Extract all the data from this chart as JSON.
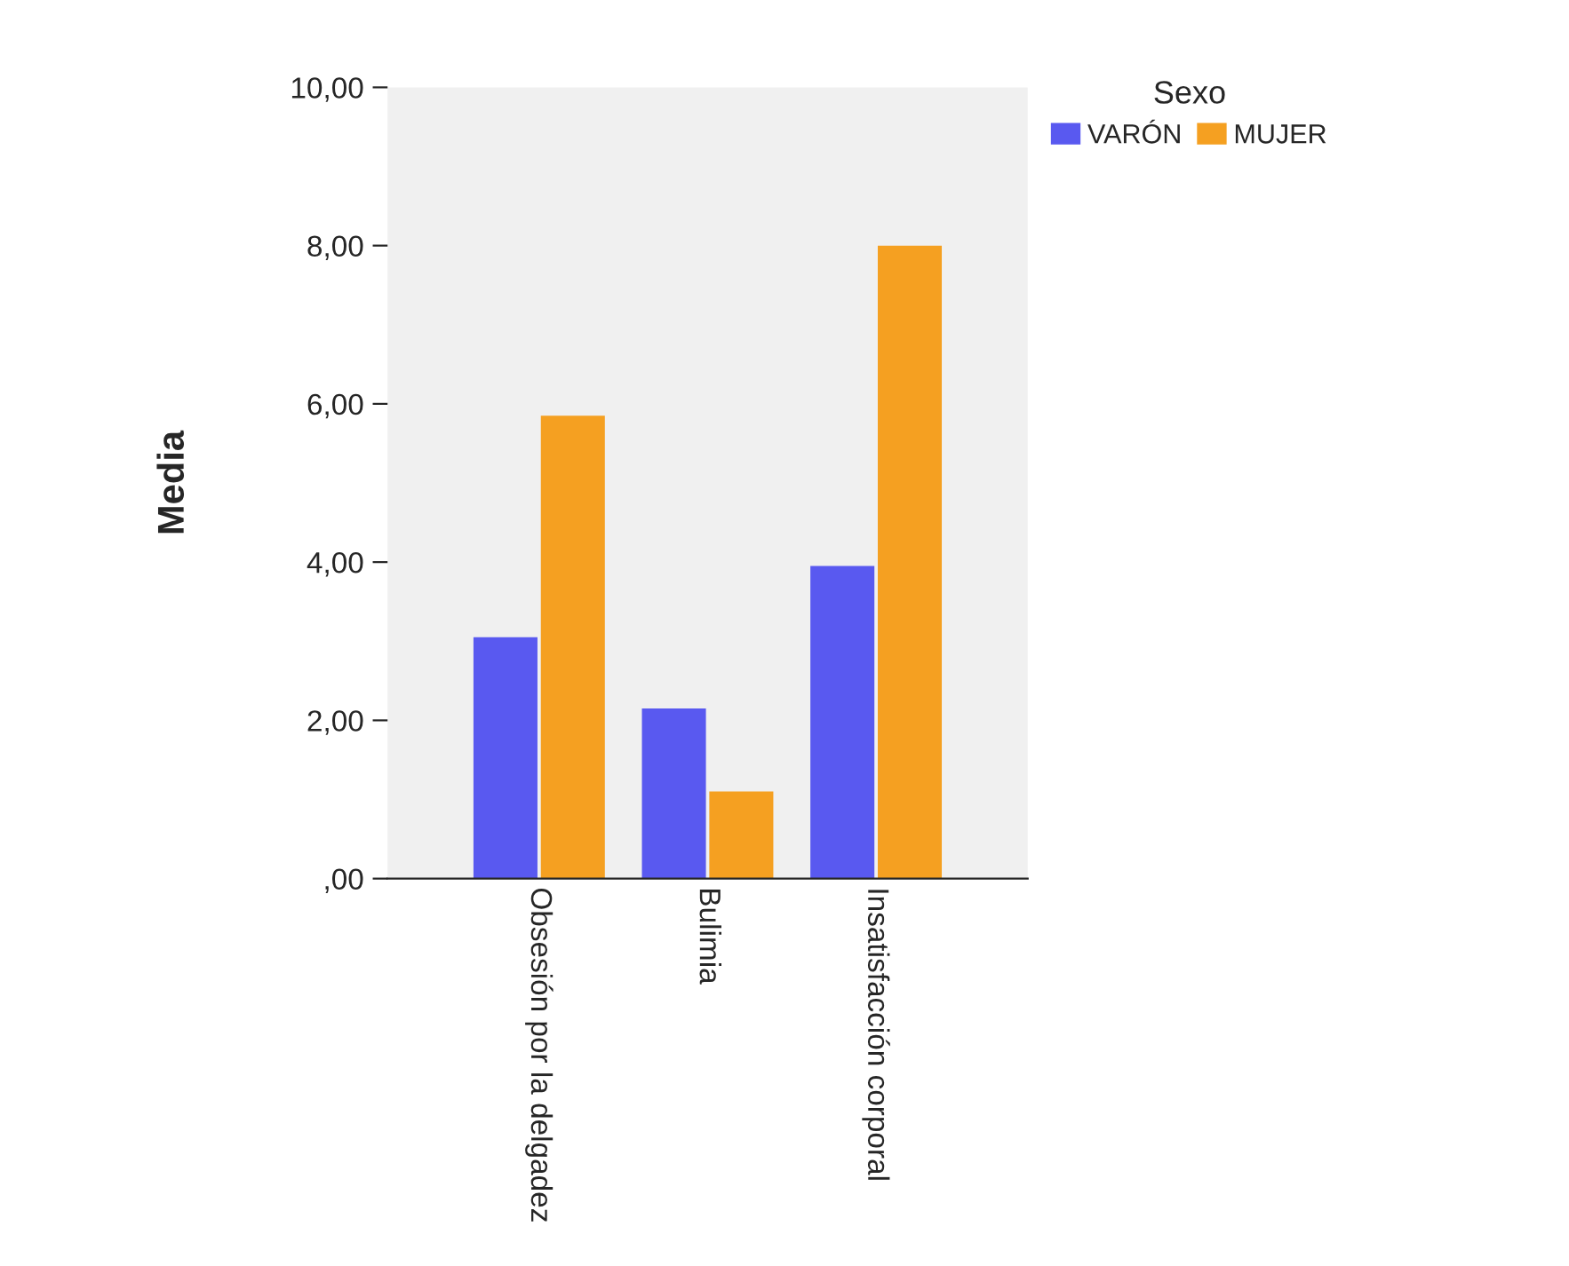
{
  "chart_data": {
    "type": "bar",
    "ylabel": "Media",
    "legend_title": "Sexo",
    "legend": "top right",
    "categories": [
      "Obsesión por la delgadez",
      "Bulimia",
      "Insatisfacción corporal"
    ],
    "series": [
      {
        "name": "VARÓN",
        "color": "#5959f0",
        "values": [
          3.05,
          2.15,
          3.95
        ]
      },
      {
        "name": "MUJER",
        "color": "#f5a021",
        "values": [
          5.85,
          1.1,
          8.0
        ]
      }
    ],
    "ylim": [
      0,
      10
    ],
    "yticks": [
      {
        "value": 0,
        "label": ",00"
      },
      {
        "value": 2,
        "label": "2,00"
      },
      {
        "value": 4,
        "label": "4,00"
      },
      {
        "value": 6,
        "label": "6,00"
      },
      {
        "value": 8,
        "label": "8,00"
      },
      {
        "value": 10,
        "label": "10,00"
      }
    ],
    "grid": false
  }
}
